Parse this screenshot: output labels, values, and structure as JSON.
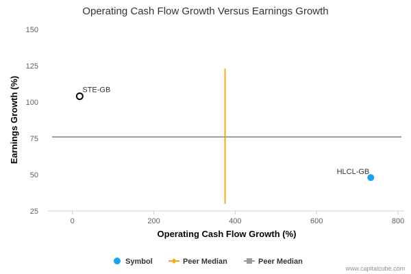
{
  "chart_data": {
    "type": "scatter",
    "title": "Operating Cash Flow Growth Versus Earnings Growth",
    "xlabel": "Operating Cash Flow Growth (%)",
    "ylabel": "Earnings Growth (%)",
    "xlim": [
      -60,
      815
    ],
    "ylim": [
      25,
      150
    ],
    "x_ticks": [
      0,
      200,
      400,
      600,
      800
    ],
    "y_ticks": [
      25,
      50,
      75,
      100,
      125,
      150
    ],
    "points": [
      {
        "label": "STE-GB",
        "x": 18,
        "y": 104,
        "style": "hollow"
      },
      {
        "label": "HLCL-GB",
        "x": 733,
        "y": 48,
        "style": "filled"
      }
    ],
    "peer_median_x": {
      "value": 375,
      "y_range": [
        30,
        123
      ]
    },
    "peer_median_y": {
      "value": 76
    }
  },
  "legend": {
    "symbol": "Symbol",
    "peer_median_1": "Peer Median",
    "peer_median_2": "Peer Median"
  },
  "credit": "www.capitalcube.com",
  "colors": {
    "point": "#1aa1f0",
    "x_median": "#f5a623",
    "y_median": "#9a9aa2",
    "axis": "#c0d0e0"
  }
}
